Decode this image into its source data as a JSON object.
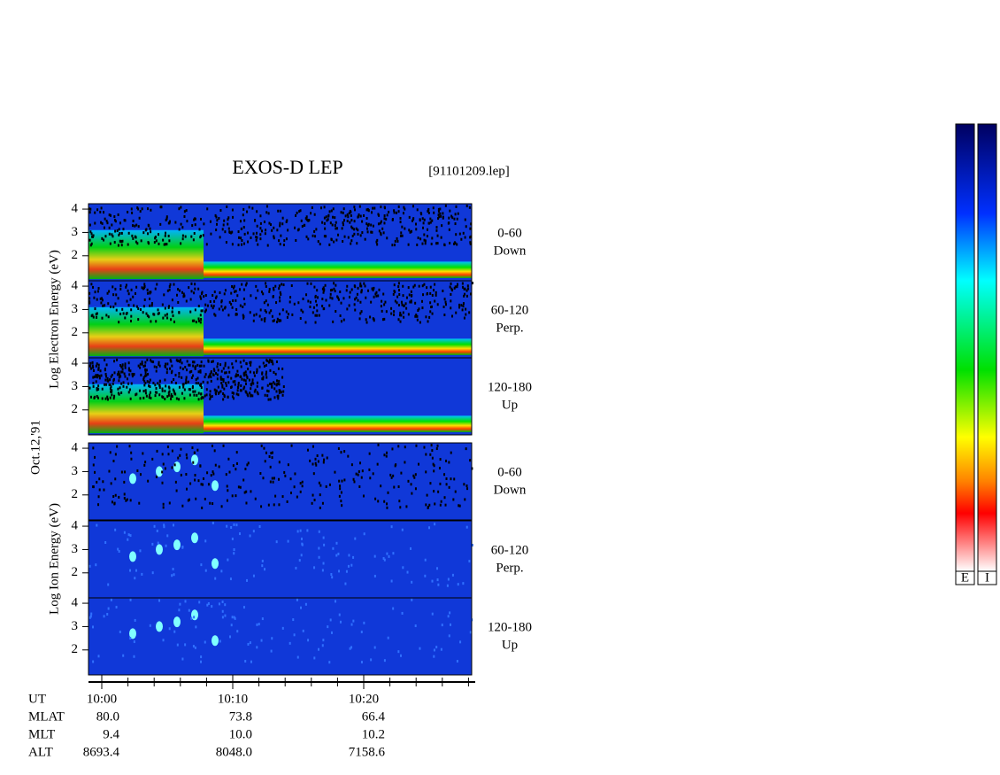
{
  "title": "EXOS-D LEP",
  "file": "[91101209.lep]",
  "date": "Oct.12,'91",
  "groups": [
    {
      "label": "Log Electron Energy (eV)",
      "panels": [
        {
          "angle": "0-60",
          "direction": "Down"
        },
        {
          "angle": "60-120",
          "direction": "Perp."
        },
        {
          "angle": "120-180",
          "direction": "Up"
        }
      ]
    },
    {
      "label": "Log Ion Energy (eV)",
      "panels": [
        {
          "angle": "0-60",
          "direction": "Down"
        },
        {
          "angle": "60-120",
          "direction": "Perp."
        },
        {
          "angle": "120-180",
          "direction": "Up"
        }
      ]
    }
  ],
  "y_axis": {
    "ylim": [
      0.93,
      4.23
    ],
    "yticks": [
      2,
      3,
      4
    ]
  },
  "x_axis": {
    "name": "UT",
    "xlim": [
      -1,
      28.5
    ],
    "xticks": [
      {
        "value": 0,
        "label": "10:00"
      },
      {
        "value": 10,
        "label": "10:10"
      },
      {
        "value": 20,
        "label": "10:20"
      }
    ]
  },
  "ephemeris": [
    {
      "name": "MLAT",
      "values": [
        "80.0",
        "73.8",
        "66.4"
      ]
    },
    {
      "name": "MLT",
      "values": [
        "9.4",
        "10.0",
        "10.2"
      ]
    },
    {
      "name": "ALT",
      "values": [
        "8693.4",
        "8048.0",
        "7158.6"
      ]
    }
  ],
  "colorbars": [
    "E",
    "I"
  ]
}
